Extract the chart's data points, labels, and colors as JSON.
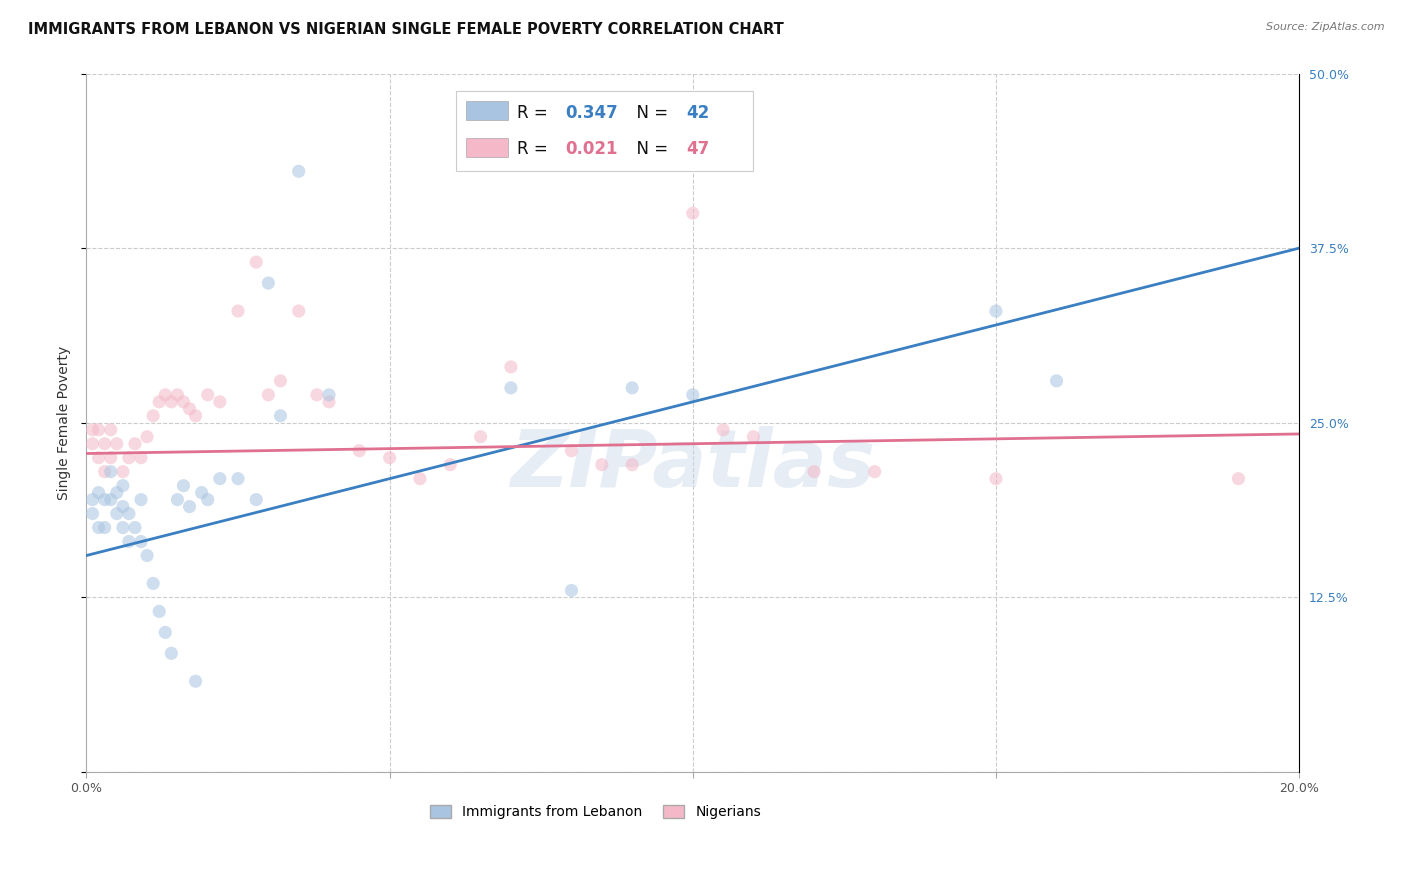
{
  "title": "IMMIGRANTS FROM LEBANON VS NIGERIAN SINGLE FEMALE POVERTY CORRELATION CHART",
  "source": "Source: ZipAtlas.com",
  "ylabel": "Single Female Poverty",
  "x_min": 0.0,
  "x_max": 0.2,
  "y_min": 0.0,
  "y_max": 0.5,
  "x_ticks": [
    0.0,
    0.05,
    0.1,
    0.15,
    0.2
  ],
  "x_tick_labels": [
    "0.0%",
    "",
    "",
    "",
    "20.0%"
  ],
  "y_ticks": [
    0.0,
    0.125,
    0.25,
    0.375,
    0.5
  ],
  "y_tick_labels": [
    "",
    "12.5%",
    "25.0%",
    "37.5%",
    "50.0%"
  ],
  "watermark": "ZIPatlas",
  "blue_R": "0.347",
  "blue_N": "42",
  "pink_R": "0.021",
  "pink_N": "47",
  "legend_label_blue": "Immigrants from Lebanon",
  "legend_label_pink": "Nigerians",
  "blue_scatter_x": [
    0.001,
    0.001,
    0.002,
    0.002,
    0.003,
    0.003,
    0.004,
    0.004,
    0.005,
    0.005,
    0.006,
    0.006,
    0.006,
    0.007,
    0.007,
    0.008,
    0.009,
    0.009,
    0.01,
    0.011,
    0.012,
    0.013,
    0.014,
    0.015,
    0.016,
    0.017,
    0.018,
    0.019,
    0.02,
    0.022,
    0.025,
    0.028,
    0.03,
    0.032,
    0.035,
    0.04,
    0.07,
    0.08,
    0.09,
    0.1,
    0.15,
    0.16
  ],
  "blue_scatter_y": [
    0.195,
    0.185,
    0.2,
    0.175,
    0.195,
    0.175,
    0.215,
    0.195,
    0.2,
    0.185,
    0.205,
    0.19,
    0.175,
    0.185,
    0.165,
    0.175,
    0.195,
    0.165,
    0.155,
    0.135,
    0.115,
    0.1,
    0.085,
    0.195,
    0.205,
    0.19,
    0.065,
    0.2,
    0.195,
    0.21,
    0.21,
    0.195,
    0.35,
    0.255,
    0.43,
    0.27,
    0.275,
    0.13,
    0.275,
    0.27,
    0.33,
    0.28
  ],
  "pink_scatter_x": [
    0.001,
    0.001,
    0.002,
    0.002,
    0.003,
    0.003,
    0.004,
    0.004,
    0.005,
    0.006,
    0.007,
    0.008,
    0.009,
    0.01,
    0.011,
    0.012,
    0.013,
    0.014,
    0.015,
    0.016,
    0.017,
    0.018,
    0.02,
    0.022,
    0.025,
    0.028,
    0.03,
    0.032,
    0.035,
    0.038,
    0.04,
    0.045,
    0.05,
    0.055,
    0.06,
    0.065,
    0.07,
    0.08,
    0.085,
    0.09,
    0.1,
    0.105,
    0.11,
    0.12,
    0.13,
    0.15,
    0.19
  ],
  "pink_scatter_y": [
    0.245,
    0.235,
    0.245,
    0.225,
    0.235,
    0.215,
    0.245,
    0.225,
    0.235,
    0.215,
    0.225,
    0.235,
    0.225,
    0.24,
    0.255,
    0.265,
    0.27,
    0.265,
    0.27,
    0.265,
    0.26,
    0.255,
    0.27,
    0.265,
    0.33,
    0.365,
    0.27,
    0.28,
    0.33,
    0.27,
    0.265,
    0.23,
    0.225,
    0.21,
    0.22,
    0.24,
    0.29,
    0.23,
    0.22,
    0.22,
    0.4,
    0.245,
    0.24,
    0.215,
    0.215,
    0.21,
    0.21
  ],
  "blue_line_x": [
    0.0,
    0.2
  ],
  "blue_line_y": [
    0.155,
    0.375
  ],
  "pink_line_x": [
    0.0,
    0.2
  ],
  "pink_line_y": [
    0.228,
    0.242
  ],
  "blue_color": "#a8c4e0",
  "pink_color": "#f4b8c8",
  "blue_line_color": "#3a7fc1",
  "pink_line_color": "#e07090",
  "scatter_alpha": 0.55,
  "scatter_size": 90,
  "grid_color": "#cccccc",
  "background_color": "#ffffff",
  "title_fontsize": 10.5,
  "axis_label_fontsize": 10,
  "tick_fontsize": 9,
  "legend_fontsize": 12,
  "right_tick_color": "#3a7fc1"
}
